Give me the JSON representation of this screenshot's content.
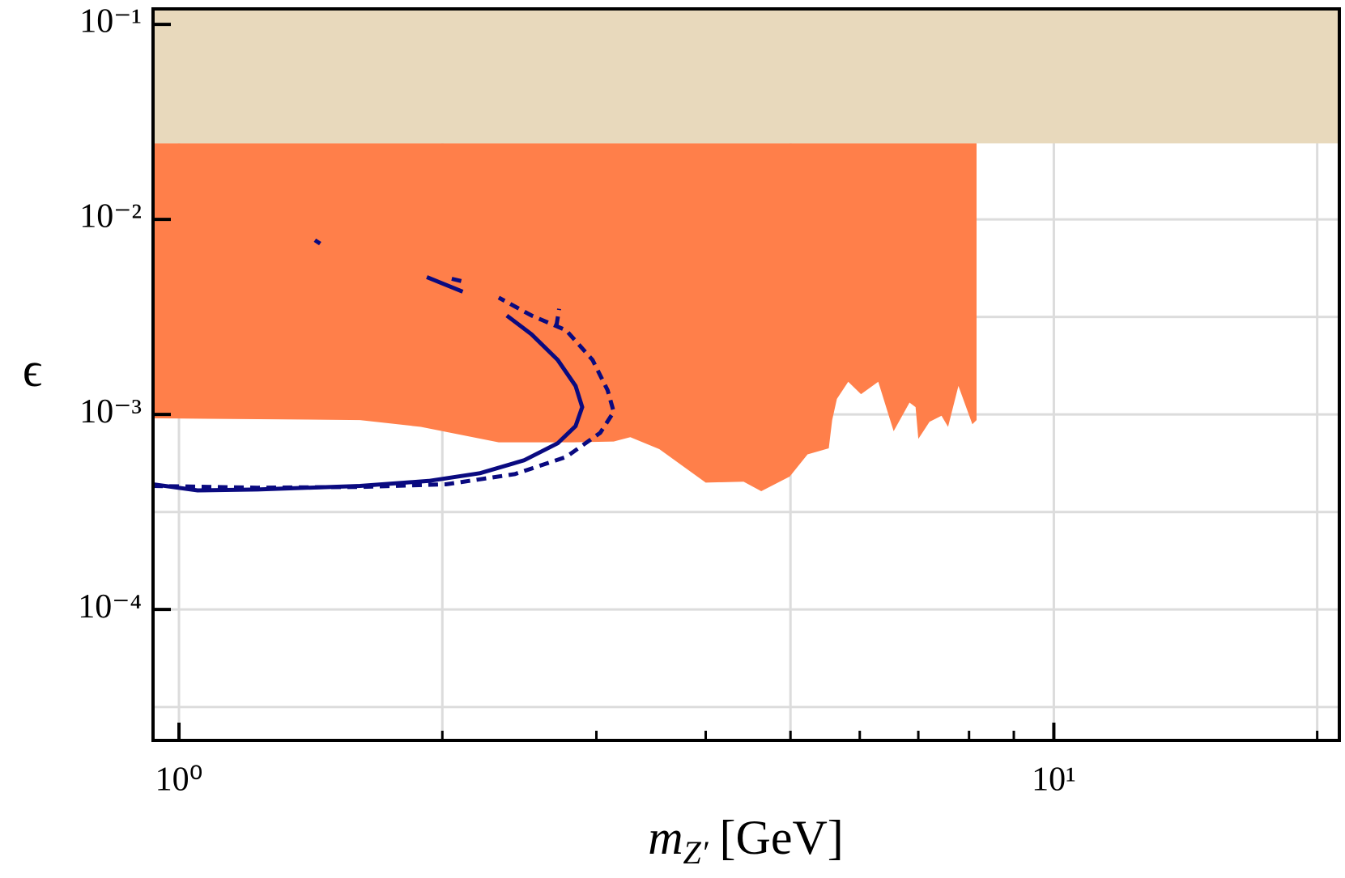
{
  "chart_data": {
    "type": "line",
    "xlabel": {
      "symbol": "m",
      "subscript": "Z′",
      "unit": "[GeV]"
    },
    "ylabel": "ϵ",
    "xscale": "log",
    "yscale": "log",
    "xlim": [
      0.934,
      21.2
    ],
    "ylim": [
      2.13e-05,
      0.12
    ],
    "xticks": [
      {
        "value": 1,
        "label": "10⁰"
      },
      {
        "value": 10,
        "label": "10¹"
      }
    ],
    "xminor": [
      2,
      3,
      4,
      5,
      6,
      7,
      8,
      9,
      20
    ],
    "yticks": [
      {
        "value": 0.1,
        "label": "10⁻¹"
      },
      {
        "value": 0.01,
        "label": "10⁻²"
      },
      {
        "value": 0.001,
        "label": "10⁻³"
      },
      {
        "value": 0.0001,
        "label": "10⁻⁴"
      }
    ],
    "grid": true,
    "xgrid": [
      1,
      2,
      5,
      10,
      20
    ],
    "ygrid": [
      0.01,
      0.00316,
      0.001,
      0.000316,
      0.0001,
      3.16e-05
    ],
    "regions": [
      {
        "color": "#e8d9bc",
        "x": [
          0.934,
          21.2,
          21.2,
          0.934
        ],
        "values": [
          0.12,
          0.12,
          0.0245,
          0.0245
        ]
      },
      {
        "color": "#ff7f4a",
        "x": [
          0.934,
          8.16,
          8.16,
          8.07,
          7.78,
          7.57,
          7.44,
          7.21,
          7.0,
          6.95,
          6.84,
          6.56,
          6.3,
          6.02,
          5.82,
          5.65,
          5.58,
          5.53,
          5.23,
          4.99,
          4.63,
          4.42,
          4.0,
          3.54,
          3.28,
          3.14,
          2.82,
          2.32,
          1.89,
          1.61,
          0.934
        ],
        "values": [
          0.0245,
          0.0245,
          0.000935,
          0.00089,
          0.0014,
          0.000863,
          0.000984,
          0.000917,
          0.000749,
          0.00109,
          0.00115,
          0.00082,
          0.00147,
          0.00127,
          0.00147,
          0.0012,
          0.000935,
          0.00067,
          0.000624,
          0.00048,
          0.000404,
          0.000452,
          0.000447,
          0.000664,
          0.000764,
          0.000726,
          0.000719,
          0.000719,
          0.000863,
          0.000935,
          0.000955
        ]
      }
    ],
    "series": [
      {
        "color": "#0a0a80",
        "dash": false,
        "x": [
          0.934,
          1.05,
          1.23,
          1.61,
          1.93,
          2.21,
          2.48,
          2.71,
          2.84,
          2.89,
          2.84,
          2.71,
          2.53,
          2.37,
          null,
          1.92,
          2.11,
          null,
          1.43,
          1.45
        ],
        "values": [
          0.000438,
          0.000408,
          0.000412,
          0.00043,
          0.000456,
          0.0005,
          0.000582,
          0.000712,
          0.000871,
          0.00109,
          0.0014,
          0.0019,
          0.00257,
          0.00321,
          null,
          0.00506,
          0.00426,
          null,
          0.00782,
          0.00751
        ]
      },
      {
        "color": "#0a0a80",
        "dash": true,
        "x": [
          0.934,
          1.23,
          1.61,
          2.02,
          2.42,
          2.77,
          3.03,
          3.14,
          3.09,
          2.97,
          2.77,
          2.53,
          2.32,
          null,
          2.7,
          2.72,
          null,
          2.05,
          2.11
        ],
        "values": [
          0.00043,
          0.000421,
          0.000425,
          0.000438,
          0.000494,
          0.000605,
          0.000804,
          0.00103,
          0.00133,
          0.0019,
          0.0027,
          0.00321,
          0.00397,
          null,
          0.00284,
          0.00348,
          null,
          0.00496,
          0.00481
        ]
      }
    ]
  }
}
